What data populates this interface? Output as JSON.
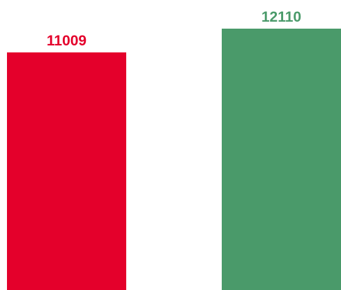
{
  "chart_data": {
    "type": "bar",
    "categories": [
      null,
      null
    ],
    "series": [
      {
        "values": [
          11009,
          12110
        ],
        "colors": [
          "#e4002b",
          "#4a9a6a"
        ]
      }
    ]
  }
}
